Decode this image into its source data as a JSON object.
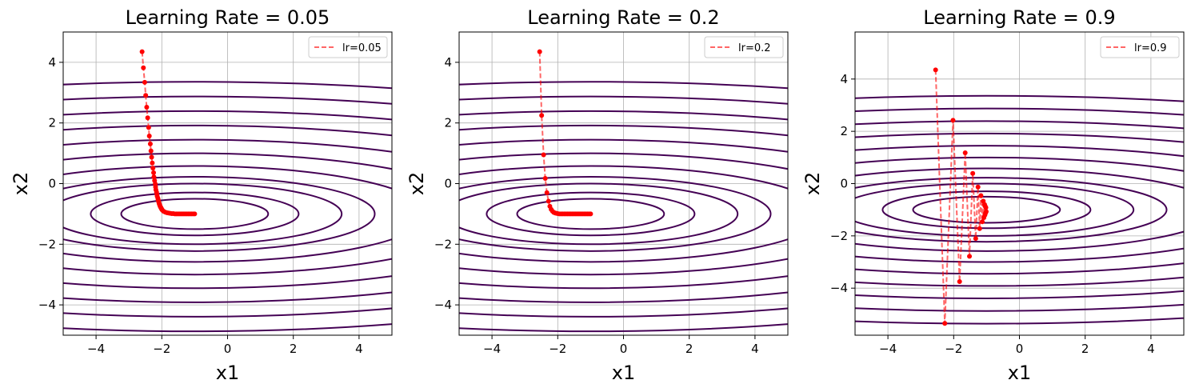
{
  "chart_data": [
    {
      "type": "line",
      "title": "Learning Rate = 0.05",
      "xlabel": "x1",
      "ylabel": "x2",
      "xlim": [
        -5,
        5
      ],
      "ylim": [
        -5,
        5
      ],
      "xticks": [
        -4,
        -2,
        0,
        2,
        4
      ],
      "yticks": [
        -4,
        -2,
        0,
        2,
        4
      ],
      "xtick_labels": [
        "−4",
        "−2",
        "0",
        "2",
        "4"
      ],
      "ytick_labels": [
        "−4",
        "−2",
        "0",
        "2",
        "4"
      ],
      "grid": true,
      "legend_position": "top-right",
      "contour": {
        "center": [
          -1,
          -1
        ],
        "levels": [
          0.5,
          1,
          2,
          3,
          5,
          8,
          12,
          17,
          23,
          30,
          38
        ],
        "a": 0.1,
        "b": 2,
        "color": "#440154"
      },
      "series": [
        {
          "name": "lr=0.05",
          "color": "#ff0000",
          "x": [
            -2.6,
            -2.56,
            -2.52,
            -2.49,
            -2.46,
            -2.43,
            -2.4,
            -2.38,
            -2.35,
            -2.33,
            -2.31,
            -2.29,
            -2.27,
            -2.25,
            -2.24,
            -2.22,
            -2.2,
            -2.19,
            -2.18,
            -2.16,
            -2.15,
            -2.14,
            -2.12,
            -2.11,
            -2.1,
            -2.09,
            -2.08,
            -2.07,
            -2.06,
            -2.05,
            -2.04,
            -2.03,
            -2.02,
            -2.01,
            -2.0,
            -1.98,
            -1.95,
            -1.9,
            -1.85,
            -1.8,
            -1.75,
            -1.7,
            -1.65,
            -1.6,
            -1.55,
            -1.5,
            -1.45,
            -1.4,
            -1.35,
            -1.3,
            -1.25,
            -1.2,
            -1.15,
            -1.1,
            -1.05,
            -1.0
          ],
          "y": [
            4.35,
            3.82,
            3.34,
            2.91,
            2.52,
            2.17,
            1.85,
            1.57,
            1.31,
            1.08,
            0.87,
            0.68,
            0.51,
            0.36,
            0.22,
            0.1,
            -0.01,
            -0.11,
            -0.2,
            -0.28,
            -0.35,
            -0.42,
            -0.48,
            -0.53,
            -0.58,
            -0.62,
            -0.66,
            -0.69,
            -0.72,
            -0.75,
            -0.77,
            -0.79,
            -0.81,
            -0.83,
            -0.85,
            -0.88,
            -0.91,
            -0.94,
            -0.96,
            -0.97,
            -0.98,
            -0.99,
            -0.99,
            -1.0,
            -1.0,
            -1.0,
            -1.0,
            -1.0,
            -1.0,
            -1.0,
            -1.0,
            -1.0,
            -1.0,
            -1.0,
            -1.0,
            -1.0
          ]
        }
      ]
    },
    {
      "type": "line",
      "title": "Learning Rate = 0.2",
      "xlabel": "x1",
      "ylabel": "x2",
      "xlim": [
        -5,
        5
      ],
      "ylim": [
        -5,
        5
      ],
      "xticks": [
        -4,
        -2,
        0,
        2,
        4
      ],
      "yticks": [
        -4,
        -2,
        0,
        2,
        4
      ],
      "xtick_labels": [
        "−4",
        "−2",
        "0",
        "2",
        "4"
      ],
      "ytick_labels": [
        "−4",
        "−2",
        "0",
        "2",
        "4"
      ],
      "grid": true,
      "legend_position": "top-right",
      "contour": {
        "center": [
          -1,
          -1
        ],
        "levels": [
          0.5,
          1,
          2,
          3,
          5,
          8,
          12,
          17,
          23,
          30,
          38
        ],
        "a": 0.1,
        "b": 2,
        "color": "#440154"
      },
      "series": [
        {
          "name": "lr=0.2",
          "color": "#ff0000",
          "x": [
            -2.55,
            -2.49,
            -2.43,
            -2.38,
            -2.33,
            -2.28,
            -2.24,
            -2.2,
            -2.16,
            -2.12,
            -2.08,
            -2.04,
            -2.0,
            -1.95,
            -1.9,
            -1.85,
            -1.8,
            -1.75,
            -1.7,
            -1.65,
            -1.6,
            -1.55,
            -1.5,
            -1.45,
            -1.4,
            -1.35,
            -1.3,
            -1.25,
            -1.2,
            -1.15,
            -1.1,
            -1.05,
            -1.0
          ],
          "y": [
            4.35,
            2.25,
            0.95,
            0.17,
            -0.3,
            -0.58,
            -0.75,
            -0.85,
            -0.91,
            -0.95,
            -0.97,
            -0.98,
            -0.99,
            -1.0,
            -1.0,
            -1.0,
            -1.0,
            -1.0,
            -1.0,
            -1.0,
            -1.0,
            -1.0,
            -1.0,
            -1.0,
            -1.0,
            -1.0,
            -1.0,
            -1.0,
            -1.0,
            -1.0,
            -1.0,
            -1.0,
            -1.0
          ]
        }
      ]
    },
    {
      "type": "line",
      "title": "Learning Rate = 0.9",
      "xlabel": "x1",
      "ylabel": "x2",
      "xlim": [
        -5,
        5
      ],
      "ylim": [
        -5.8,
        5.8
      ],
      "xticks": [
        -4,
        -2,
        0,
        2,
        4
      ],
      "yticks": [
        -4,
        -2,
        0,
        2,
        4
      ],
      "xtick_labels": [
        "−4",
        "−2",
        "0",
        "2",
        "4"
      ],
      "ytick_labels": [
        "−4",
        "−2",
        "0",
        "2",
        "4"
      ],
      "grid": true,
      "legend_position": "top-right",
      "contour": {
        "center": [
          -1,
          -1
        ],
        "levels": [
          0.5,
          1,
          2,
          3,
          5,
          8,
          12,
          17,
          23,
          30,
          38
        ],
        "a": 0.1,
        "b": 2,
        "color": "#440154"
      },
      "series": [
        {
          "name": "lr=0.9",
          "color": "#ff0000",
          "x": [
            -2.55,
            -2.27,
            -2.02,
            -1.82,
            -1.65,
            -1.52,
            -1.42,
            -1.33,
            -1.26,
            -1.21,
            -1.17,
            -1.13,
            -1.1,
            -1.08,
            -1.06,
            -1.05,
            -1.04,
            -1.03,
            -1.02,
            -1.01
          ],
          "y": [
            4.35,
            -5.35,
            2.42,
            -3.75,
            1.18,
            -2.78,
            0.39,
            -2.1,
            -0.13,
            -1.72,
            -0.46,
            -1.46,
            -0.67,
            -1.3,
            -0.8,
            -1.2,
            -0.87,
            -1.12,
            -0.92,
            -1.07
          ]
        }
      ]
    }
  ]
}
